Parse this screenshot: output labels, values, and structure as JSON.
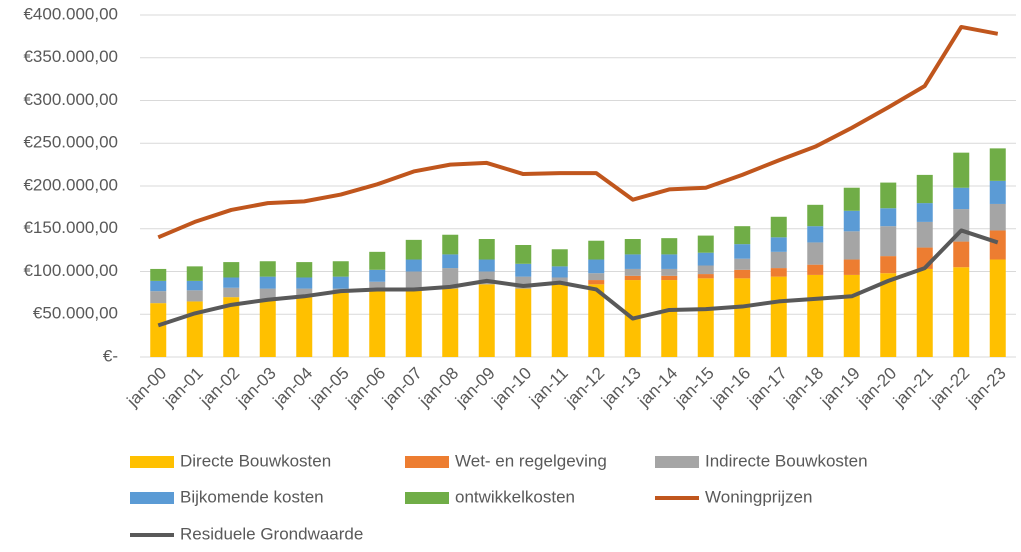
{
  "chart_data": {
    "type": "bar",
    "stacked": true,
    "grid": true,
    "legend": "bottom",
    "categories": [
      "jan-00",
      "jan-01",
      "jan-02",
      "jan-03",
      "jan-04",
      "jan-05",
      "jan-06",
      "jan-07",
      "jan-08",
      "jan-09",
      "jan-10",
      "jan-11",
      "jan-12",
      "jan-13",
      "jan-14",
      "jan-15",
      "jan-16",
      "jan-17",
      "jan-18",
      "jan-19",
      "jan-20",
      "jan-21",
      "jan-22",
      "jan-23"
    ],
    "ylim": [
      0,
      400000
    ],
    "yticks": [
      {
        "value": 0,
        "label": "€-"
      },
      {
        "value": 50000,
        "label": "€50.000,00"
      },
      {
        "value": 100000,
        "label": "€100.000,00"
      },
      {
        "value": 150000,
        "label": "€150.000,00"
      },
      {
        "value": 200000,
        "label": "€200.000,00"
      },
      {
        "value": 250000,
        "label": "€250.000,00"
      },
      {
        "value": 300000,
        "label": "€300.000,00"
      },
      {
        "value": 350000,
        "label": "€350.000,00"
      },
      {
        "value": 400000,
        "label": "€400.000,00"
      }
    ],
    "series": [
      {
        "name": "Directe Bouwkosten",
        "type": "bar",
        "color": "#ffc000",
        "values": [
          63000,
          65000,
          70000,
          68000,
          70000,
          75000,
          78000,
          78000,
          80000,
          85000,
          80000,
          85000,
          85000,
          90000,
          90000,
          92000,
          92000,
          94000,
          96000,
          96000,
          98000,
          103000,
          105000,
          114000
        ]
      },
      {
        "name": "Wet- en regelgeving",
        "type": "bar",
        "color": "#ed7d31",
        "values": [
          0,
          0,
          0,
          0,
          0,
          0,
          0,
          0,
          0,
          0,
          0,
          0,
          5000,
          5000,
          5000,
          5000,
          10000,
          10000,
          12000,
          18000,
          20000,
          25000,
          30000,
          34000
        ]
      },
      {
        "name": "Indirecte Bouwkosten",
        "type": "bar",
        "color": "#a5a5a5",
        "values": [
          14000,
          13000,
          11000,
          12000,
          10000,
          5000,
          10000,
          22000,
          24000,
          15000,
          14000,
          8000,
          8000,
          8000,
          8000,
          10000,
          13000,
          19000,
          26000,
          33000,
          35000,
          30000,
          38000,
          31000
        ]
      },
      {
        "name": "Bijkomende kosten",
        "type": "bar",
        "color": "#5b9bd5",
        "values": [
          12000,
          11000,
          12000,
          14000,
          13000,
          14000,
          14000,
          14000,
          16000,
          14000,
          15000,
          13000,
          16000,
          17000,
          17000,
          15000,
          17000,
          17000,
          19000,
          24000,
          21000,
          22000,
          25000,
          27000
        ]
      },
      {
        "name": "ontwikkelkosten",
        "type": "bar",
        "color": "#70ad47",
        "values": [
          14000,
          17000,
          18000,
          18000,
          18000,
          18000,
          21000,
          23000,
          23000,
          24000,
          22000,
          20000,
          22000,
          18000,
          19000,
          20000,
          21000,
          24000,
          25000,
          27000,
          30000,
          33000,
          41000,
          38000
        ]
      },
      {
        "name": "Woningprijzen",
        "type": "line",
        "color": "#c0561d",
        "values": [
          140000,
          158000,
          172000,
          180000,
          182000,
          190000,
          202000,
          217000,
          225000,
          227000,
          214000,
          215000,
          215000,
          184000,
          196000,
          198000,
          213000,
          230000,
          246000,
          268000,
          292000,
          317000,
          386000,
          378000
        ]
      },
      {
        "name": "Residuele Grondwaarde",
        "type": "line",
        "color": "#595959",
        "values": [
          37000,
          51000,
          61000,
          67000,
          71000,
          77000,
          79000,
          79000,
          82000,
          89000,
          83000,
          87000,
          79000,
          45000,
          55000,
          56000,
          59000,
          65000,
          68000,
          71000,
          89000,
          104000,
          148000,
          134000
        ]
      }
    ]
  }
}
